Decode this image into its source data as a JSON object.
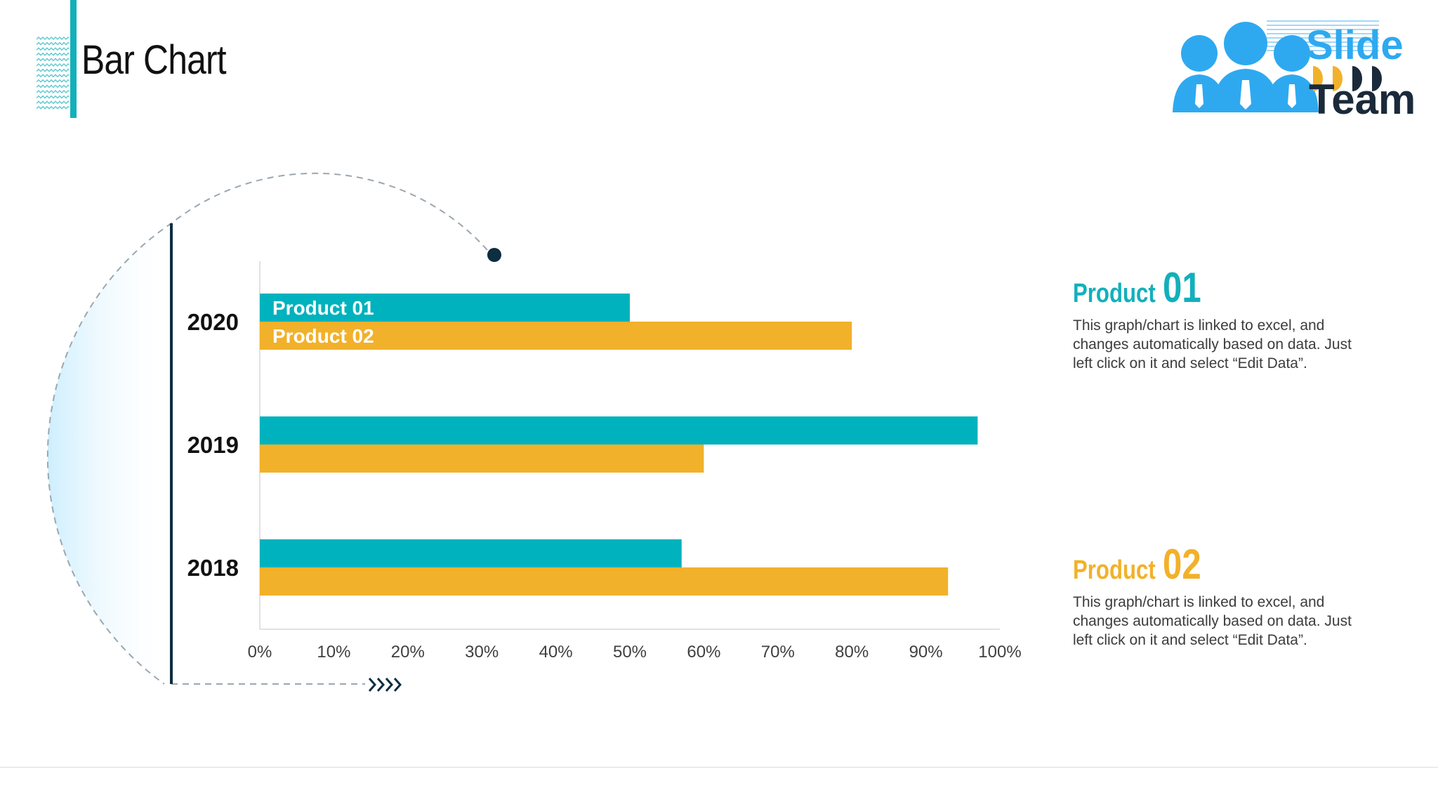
{
  "slide": {
    "title": "Bar Chart"
  },
  "logo": {
    "word1": "Slide",
    "word2": "Team"
  },
  "colors": {
    "accent": "#12b0bb",
    "product1": "#00b2bd",
    "product2": "#f2b12a",
    "dark": "#0d2d40"
  },
  "chart_data": {
    "type": "bar",
    "orientation": "horizontal",
    "categories": [
      "2020",
      "2019",
      "2018"
    ],
    "series": [
      {
        "name": "Product 01",
        "values": [
          50,
          97,
          57
        ]
      },
      {
        "name": "Product 02",
        "values": [
          80,
          60,
          93
        ]
      }
    ],
    "xlim": [
      0,
      100
    ],
    "xticks": [
      "0%",
      "10%",
      "20%",
      "30%",
      "40%",
      "50%",
      "60%",
      "70%",
      "80%",
      "90%",
      "100%"
    ],
    "title": "",
    "xlabel": "",
    "ylabel": "",
    "grid": false
  },
  "panels": [
    {
      "word": "Product",
      "number": "01",
      "text": "This graph/chart is linked to excel, and changes automatically based on data. Just left click on it and select “Edit Data”."
    },
    {
      "word": "Product",
      "number": "02",
      "text": "This graph/chart is linked to excel, and changes automatically based on data. Just left click on it and select “Edit Data”."
    }
  ]
}
